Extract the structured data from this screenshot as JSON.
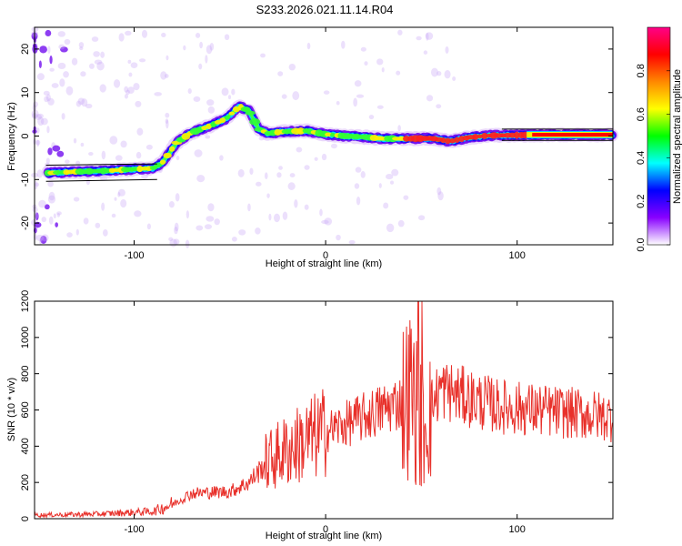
{
  "title": "S233.2026.021.11.14.R04",
  "chart_data": [
    {
      "type": "heatmap",
      "name": "spectrogram",
      "xlabel": "Height of straight line (km)",
      "ylabel": "Frequency (Hz)",
      "xlim": [
        -152,
        150
      ],
      "ylim": [
        -25,
        25
      ],
      "xticks": [
        -100,
        0,
        100
      ],
      "yticks": [
        -20,
        -10,
        0,
        10,
        20
      ],
      "xtick_labels": [
        "-100",
        "0",
        "100"
      ],
      "ytick_labels": [
        "-20",
        "-10",
        "0",
        "10",
        "20"
      ],
      "colorbar": {
        "label": "Normalized spectral amplitude",
        "range": [
          0,
          1
        ],
        "ticks": [
          0,
          0.2,
          0.4,
          0.6,
          0.8
        ],
        "tick_labels": [
          "0.0",
          "0.2",
          "0.4",
          "0.6",
          "0.8"
        ],
        "colors": [
          "#ffffff",
          "#8800ff",
          "#0000ff",
          "#00ffff",
          "#00ff00",
          "#ffff00",
          "#ff8800",
          "#ff0000",
          "#ff0088"
        ]
      },
      "ridge_x": [
        -145,
        -130,
        -115,
        -100,
        -90,
        -85,
        -78,
        -70,
        -60,
        -52,
        -45,
        -40,
        -35,
        -30,
        -22,
        -10,
        0,
        10,
        20,
        30,
        40,
        45,
        55,
        65,
        75,
        85,
        100,
        120,
        150
      ],
      "ridge_y": [
        -8.5,
        -8.2,
        -8.0,
        -7.6,
        -7.4,
        -6.0,
        -1.6,
        0.8,
        2.4,
        4.0,
        6.8,
        5.8,
        1.6,
        0.6,
        1.0,
        1.2,
        0.4,
        0.0,
        -0.2,
        -0.6,
        -0.6,
        -0.6,
        -0.5,
        -1.2,
        -0.3,
        0.1,
        0.2,
        0.3,
        0.3
      ]
    },
    {
      "type": "line",
      "name": "snr",
      "xlabel": "Height of straight line (km)",
      "ylabel": "SNR (10 * v/v)",
      "xlim": [
        -152,
        150
      ],
      "ylim": [
        0,
        1200
      ],
      "xticks": [
        -100,
        0,
        100
      ],
      "yticks": [
        0,
        200,
        400,
        600,
        800,
        1000,
        1200
      ],
      "xtick_labels": [
        "-100",
        "0",
        "100"
      ],
      "ytick_labels": [
        "0",
        "200",
        "400",
        "600",
        "800",
        "1000",
        "1200"
      ],
      "color": "#e8302a",
      "trend_x": [
        -152,
        -120,
        -90,
        -80,
        -70,
        -50,
        -40,
        -30,
        -20,
        0,
        20,
        40,
        45,
        50,
        55,
        60,
        70,
        90,
        110,
        130,
        150
      ],
      "trend_y": [
        20,
        25,
        40,
        80,
        140,
        150,
        200,
        320,
        380,
        480,
        560,
        650,
        700,
        500,
        620,
        720,
        680,
        620,
        600,
        580,
        560
      ]
    }
  ]
}
